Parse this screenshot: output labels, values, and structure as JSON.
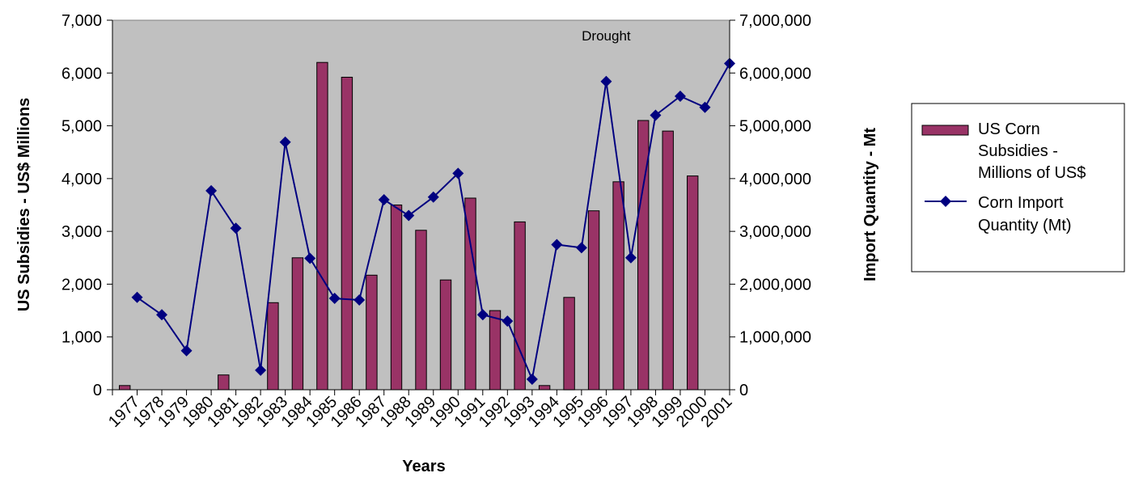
{
  "chart_data": {
    "type": "bar",
    "categories": [
      "1977",
      "1978",
      "1979",
      "1980",
      "1981",
      "1982",
      "1983",
      "1984",
      "1985",
      "1986",
      "1987",
      "1988",
      "1989",
      "1990",
      "1991",
      "1992",
      "1993",
      "1994",
      "1995",
      "1996",
      "1997",
      "1998",
      "1999",
      "2000",
      "2001"
    ],
    "series": [
      {
        "name": "US Corn Subsidies - Millions of US$",
        "type": "bar",
        "axis": "left",
        "color": "#993366",
        "values": [
          80,
          0,
          0,
          0,
          280,
          0,
          1650,
          2500,
          6200,
          5920,
          2170,
          3500,
          3020,
          2080,
          3630,
          1500,
          3180,
          80,
          1750,
          3390,
          3940,
          5100,
          4900,
          4050,
          0
        ]
      },
      {
        "name": "Corn Import Quantity (Mt)",
        "type": "line",
        "axis": "right",
        "color": "#000080",
        "marker": "diamond",
        "values": [
          1750000,
          1420000,
          740000,
          3770000,
          3060000,
          370000,
          4690000,
          2490000,
          1730000,
          1700000,
          3600000,
          3300000,
          3650000,
          4100000,
          1420000,
          1300000,
          200000,
          2750000,
          2690000,
          5840000,
          2500000,
          5200000,
          5560000,
          5350000,
          6180000
        ]
      }
    ],
    "xlabel": "Years",
    "ylabel": "US Subsidies - US$ Millions",
    "y2label": "Import Quantity - Mt",
    "ylim": [
      0,
      7000
    ],
    "y2lim": [
      0,
      7000000
    ],
    "yticks": [
      "0",
      "1,000",
      "2,000",
      "3,000",
      "4,000",
      "5,000",
      "6,000",
      "7,000"
    ],
    "y2ticks": [
      "0",
      "1,000,000",
      "2,000,000",
      "3,000,000",
      "4,000,000",
      "5,000,000",
      "6,000,000",
      "7,000,000"
    ],
    "annotations": [
      {
        "text": "Drought",
        "category": "1996"
      }
    ],
    "plot_background": "#c0c0c0",
    "grid": false,
    "legend_position": "right"
  }
}
